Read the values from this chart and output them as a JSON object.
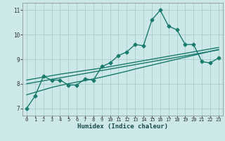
{
  "title": "",
  "xlabel": "Humidex (Indice chaleur)",
  "xlim": [
    -0.5,
    23.5
  ],
  "ylim": [
    6.7,
    11.3
  ],
  "yticks": [
    7,
    8,
    9,
    10,
    11
  ],
  "xticks": [
    0,
    1,
    2,
    3,
    4,
    5,
    6,
    7,
    8,
    9,
    10,
    11,
    12,
    13,
    14,
    15,
    16,
    17,
    18,
    19,
    20,
    21,
    22,
    23
  ],
  "background_color": "#cce8e8",
  "grid_color": "#aacccc",
  "line_color": "#1a7a6e",
  "line_width": 1.0,
  "marker": "D",
  "marker_size": 2.5,
  "x": [
    0,
    1,
    2,
    3,
    4,
    5,
    6,
    7,
    8,
    9,
    10,
    11,
    12,
    13,
    14,
    15,
    16,
    17,
    18,
    19,
    20,
    21,
    22,
    23
  ],
  "y_main": [
    7.0,
    7.5,
    8.3,
    8.15,
    8.15,
    7.95,
    7.95,
    8.2,
    8.15,
    8.7,
    8.85,
    9.15,
    9.3,
    9.6,
    9.55,
    10.6,
    11.0,
    10.35,
    10.2,
    9.6,
    9.6,
    8.9,
    8.85,
    9.05
  ],
  "y_trend1": [
    7.55,
    7.65,
    7.75,
    7.85,
    7.93,
    8.0,
    8.07,
    8.13,
    8.2,
    8.27,
    8.35,
    8.43,
    8.51,
    8.6,
    8.68,
    8.76,
    8.84,
    8.92,
    9.0,
    9.08,
    9.16,
    9.24,
    9.32,
    9.4
  ],
  "y_trend2": [
    8.0,
    8.06,
    8.12,
    8.18,
    8.24,
    8.3,
    8.36,
    8.42,
    8.48,
    8.54,
    8.6,
    8.66,
    8.72,
    8.78,
    8.84,
    8.9,
    8.96,
    9.02,
    9.08,
    9.14,
    9.2,
    9.26,
    9.32,
    9.38
  ],
  "y_trend3": [
    8.15,
    8.21,
    8.27,
    8.33,
    8.39,
    8.44,
    8.49,
    8.54,
    8.59,
    8.64,
    8.7,
    8.76,
    8.82,
    8.88,
    8.94,
    9.0,
    9.06,
    9.12,
    9.18,
    9.24,
    9.3,
    9.36,
    9.42,
    9.48
  ]
}
